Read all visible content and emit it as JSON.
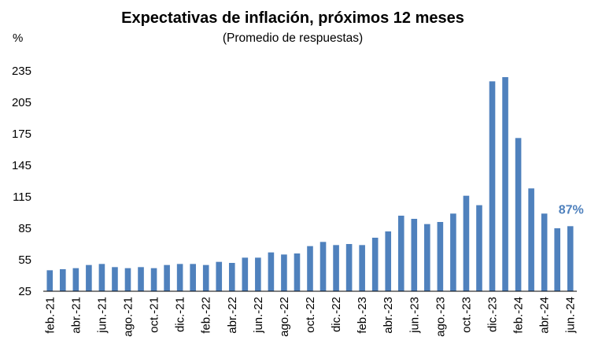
{
  "chart_data": {
    "type": "bar",
    "title": "Expectativas de inflación, próximos 12 meses",
    "subtitle": "(Promedio de respuestas)",
    "unit_label": "%",
    "ylim": [
      25,
      250
    ],
    "yticks": [
      25,
      55,
      85,
      115,
      145,
      175,
      205,
      235
    ],
    "grid": false,
    "bar_color": "#4F81BD",
    "categories": [
      "feb.-21",
      "mar.-21",
      "abr.-21",
      "may.-21",
      "jun.-21",
      "jul.-21",
      "ago.-21",
      "sep.-21",
      "oct.-21",
      "nov.-21",
      "dic.-21",
      "ene.-22",
      "feb.-22",
      "mar.-22",
      "abr.-22",
      "may.-22",
      "jun.-22",
      "jul.-22",
      "ago.-22",
      "sep.-22",
      "oct.-22",
      "nov.-22",
      "dic.-22",
      "ene.-23",
      "feb.-23",
      "mar.-23",
      "abr.-23",
      "may.-23",
      "jun.-23",
      "jul.-23",
      "ago.-23",
      "sep.-23",
      "oct.-23",
      "nov.-23",
      "dic.-23",
      "ene.-24",
      "feb.-24",
      "mar.-24",
      "abr.-24",
      "may.-24",
      "jun.-24"
    ],
    "tick_labels_shown": [
      "feb.-21",
      "abr.-21",
      "jun.-21",
      "ago.-21",
      "oct.-21",
      "dic.-21",
      "feb.-22",
      "abr.-22",
      "jun.-22",
      "ago.-22",
      "oct.-22",
      "dic.-22",
      "feb.-23",
      "abr.-23",
      "jun.-23",
      "ago.-23",
      "oct.-23",
      "dic.-23",
      "feb.-24",
      "abr.-24",
      "jun.-24"
    ],
    "values": [
      45,
      46,
      47,
      50,
      51,
      48,
      47,
      48,
      47,
      50,
      51,
      51,
      50,
      53,
      52,
      57,
      57,
      62,
      60,
      61,
      68,
      72,
      69,
      70,
      69,
      76,
      82,
      97,
      94,
      89,
      91,
      99,
      116,
      107,
      225,
      229,
      171,
      123,
      99,
      85,
      87
    ],
    "data_labels": [
      {
        "category": "jun.-24",
        "text": "87%"
      }
    ]
  }
}
